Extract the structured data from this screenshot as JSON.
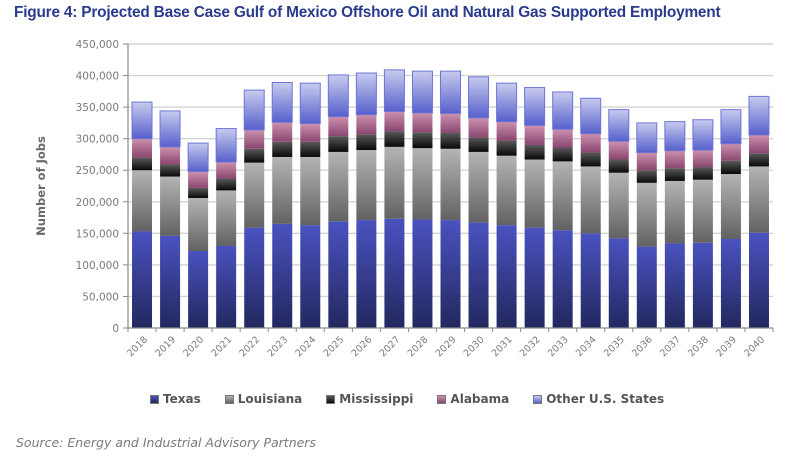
{
  "chart_data": {
    "type": "bar",
    "stacked": true,
    "title": "Figure 4: Projected Base Case Gulf of Mexico Offshore Oil and Natural Gas Supported Employment",
    "xlabel": "",
    "ylabel": "Number of Jobs",
    "ylim": [
      0,
      450000
    ],
    "yticks": [
      0,
      50000,
      100000,
      150000,
      200000,
      250000,
      300000,
      350000,
      400000,
      450000
    ],
    "ytick_labels": [
      "0",
      "50,000",
      "100,000",
      "150,000",
      "200,000",
      "250,000",
      "300,000",
      "350,000",
      "400,000",
      "450,000"
    ],
    "grid": true,
    "legend_position": "bottom",
    "categories": [
      "2018",
      "2019",
      "2020",
      "2021",
      "2022",
      "2023",
      "2024",
      "2025",
      "2026",
      "2027",
      "2028",
      "2029",
      "2030",
      "2031",
      "2032",
      "2033",
      "2034",
      "2035",
      "2036",
      "2037",
      "2038",
      "2039",
      "2040"
    ],
    "series": [
      {
        "name": "Texas",
        "color_top": "#4a52c0",
        "color_bottom": "#22285e",
        "values": [
          153000,
          146000,
          122000,
          130000,
          159000,
          165000,
          163000,
          169000,
          171000,
          173000,
          172000,
          171000,
          167000,
          163000,
          159000,
          155000,
          150000,
          142000,
          129000,
          134000,
          135000,
          141000,
          151000
        ]
      },
      {
        "name": "Louisiana",
        "color_top": "#b4b4b4",
        "color_bottom": "#626262",
        "values": [
          97000,
          94000,
          84000,
          88000,
          103000,
          106000,
          108000,
          110000,
          111000,
          114000,
          113000,
          113000,
          112000,
          110000,
          108000,
          109000,
          106000,
          104000,
          101000,
          99000,
          100000,
          103000,
          105000
        ]
      },
      {
        "name": "Mississippi",
        "color_top": "#5a5a5a",
        "color_bottom": "#080808",
        "values": [
          20000,
          19000,
          16000,
          19000,
          22000,
          24000,
          24000,
          25000,
          25000,
          25000,
          25000,
          25000,
          23000,
          24000,
          23000,
          22000,
          22000,
          21000,
          20000,
          20000,
          20000,
          21000,
          21000
        ]
      },
      {
        "name": "Alabama",
        "color_top": "#cc92ae",
        "color_bottom": "#8a4670",
        "values": [
          30000,
          28000,
          26000,
          26000,
          30000,
          31000,
          29000,
          31000,
          31000,
          31000,
          31000,
          31000,
          31000,
          30000,
          31000,
          29000,
          30000,
          29000,
          28000,
          28000,
          27000,
          27000,
          29000
        ]
      },
      {
        "name": "Other U.S. States",
        "color_top": "#c8cbee",
        "color_bottom": "#5660cc",
        "values": [
          58000,
          57000,
          45000,
          53000,
          63000,
          63000,
          64000,
          66000,
          66000,
          66000,
          66000,
          67000,
          65000,
          61000,
          60000,
          59000,
          56000,
          50000,
          47000,
          46000,
          48000,
          54000,
          61000
        ]
      }
    ],
    "source": "Source: Energy and Industrial Advisory Partners"
  }
}
